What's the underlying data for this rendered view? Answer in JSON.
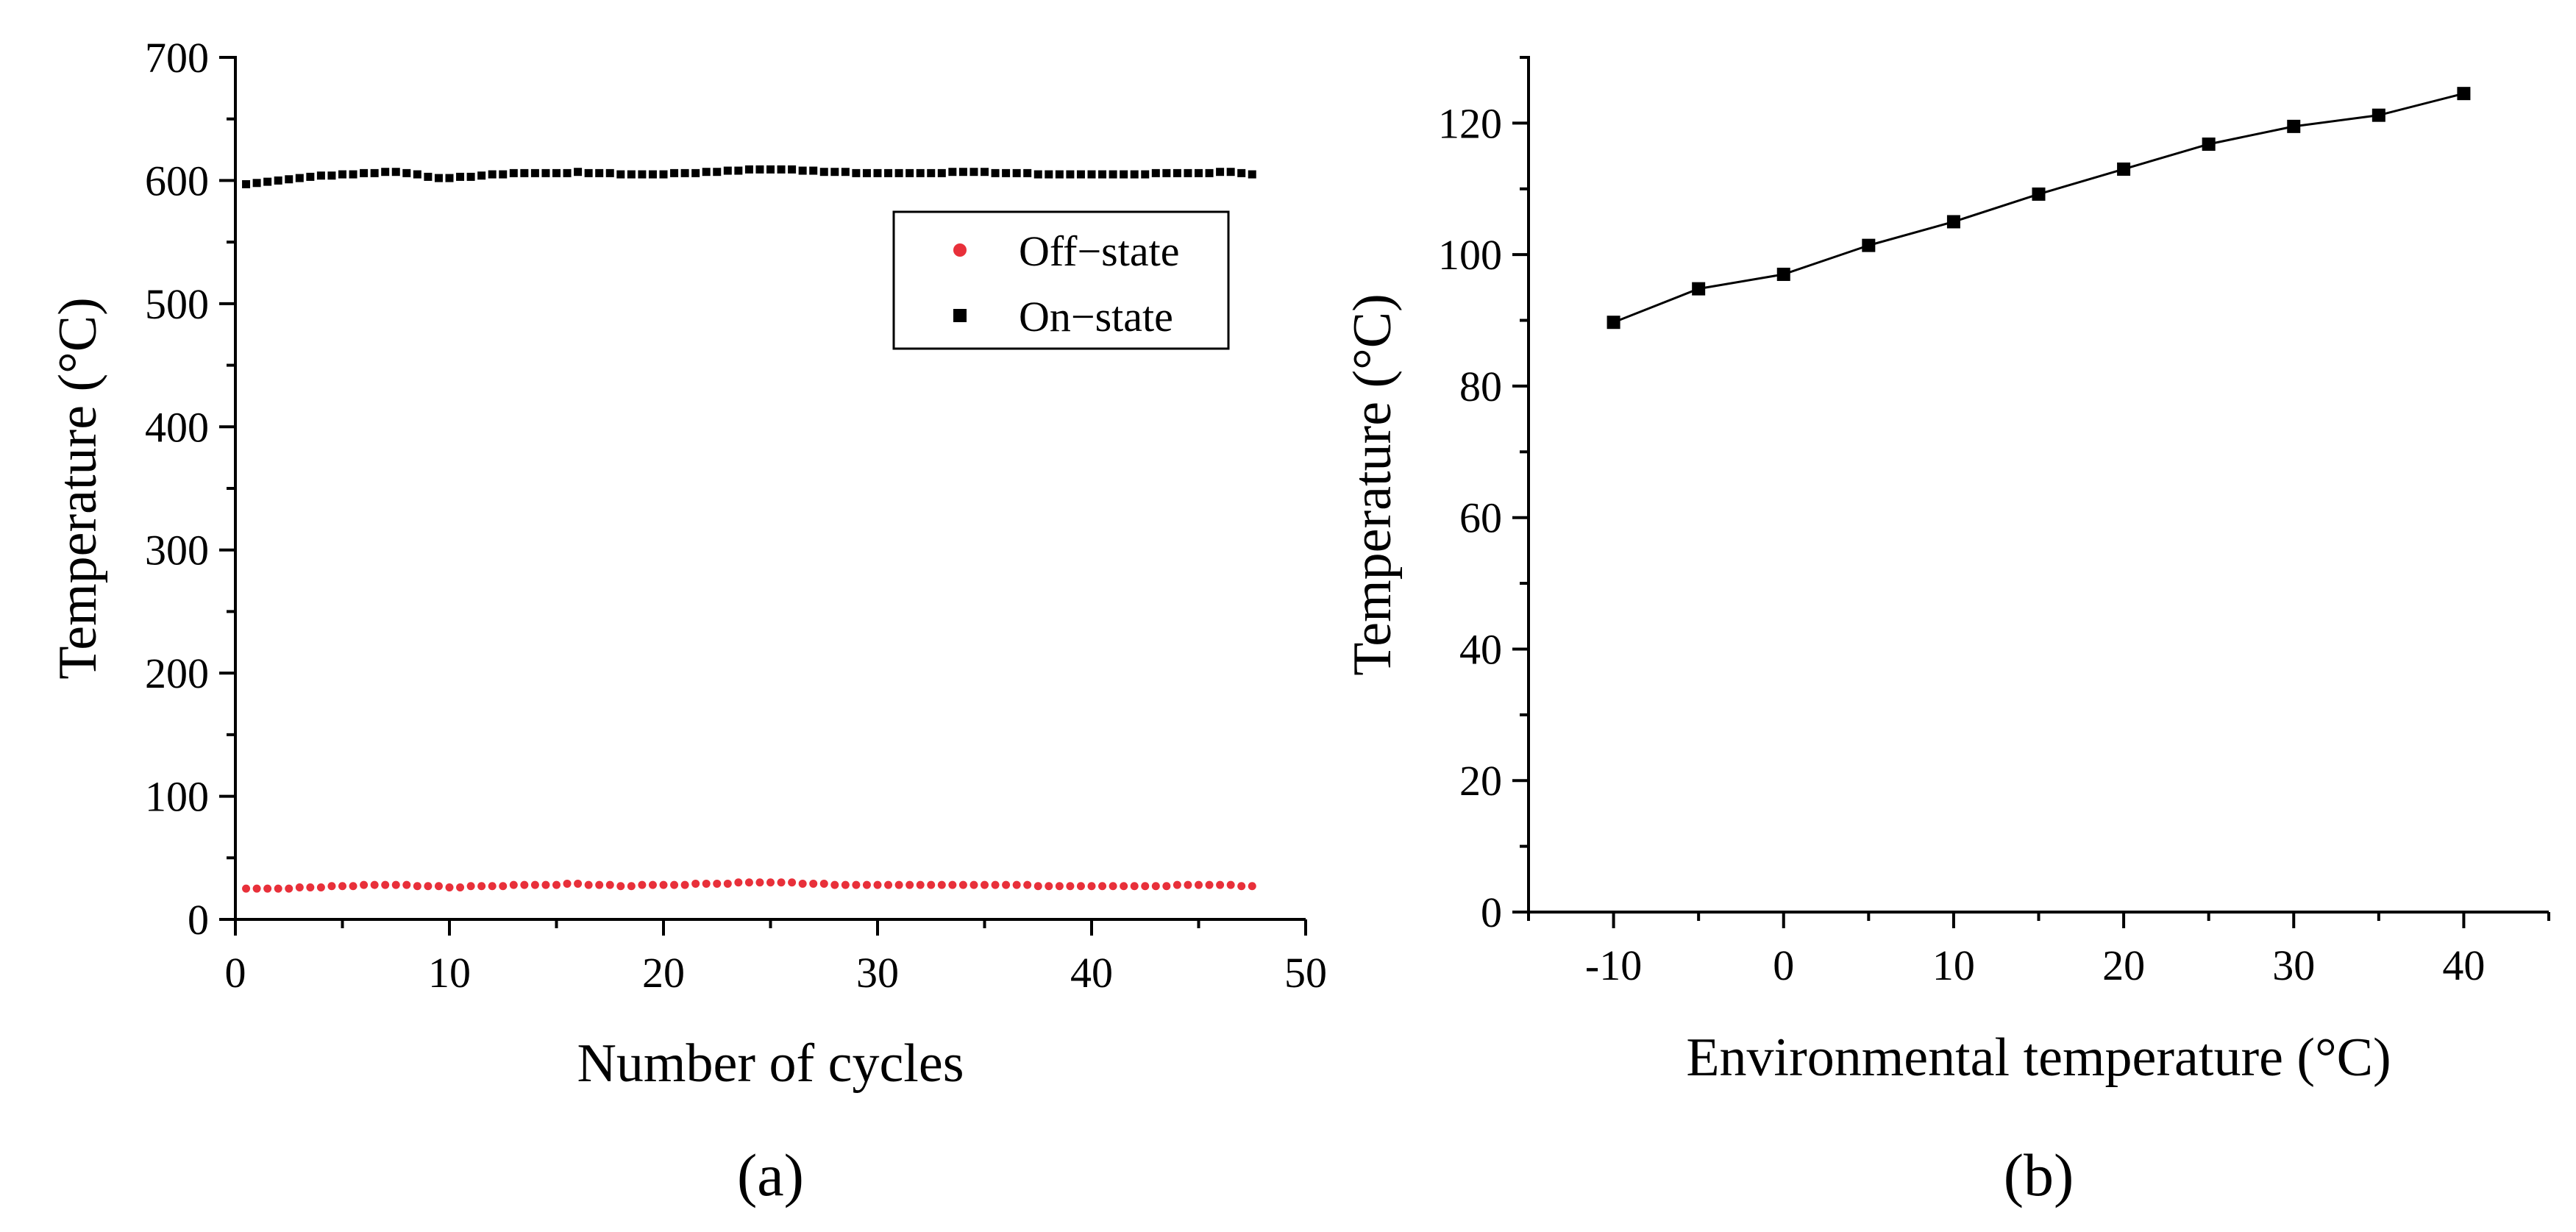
{
  "chart_data": [
    {
      "type": "scatter",
      "panel_label": "(a)",
      "title": "",
      "xlabel": "Number of cycles",
      "ylabel": "Temperature (°C)",
      "xlim": [
        0,
        50
      ],
      "ylim": [
        0,
        700
      ],
      "xticks": [
        0,
        10,
        20,
        30,
        40,
        50
      ],
      "yticks": [
        0,
        100,
        200,
        300,
        400,
        500,
        600,
        700
      ],
      "grid": false,
      "legend_position": "top-right",
      "series": [
        {
          "name": "Off−state",
          "marker": "circle",
          "color": "#e8303a",
          "x": [
            0.5,
            1,
            1.5,
            2,
            2.5,
            3,
            3.5,
            4,
            4.5,
            5,
            5.5,
            6,
            6.5,
            7,
            7.5,
            8,
            8.5,
            9,
            9.5,
            10,
            10.5,
            11,
            11.5,
            12,
            12.5,
            13,
            13.5,
            14,
            14.5,
            15,
            15.5,
            16,
            16.5,
            17,
            17.5,
            18,
            18.5,
            19,
            19.5,
            20,
            20.5,
            21,
            21.5,
            22,
            22.5,
            23,
            23.5,
            24,
            24.5,
            25,
            25.5,
            26,
            26.5,
            27,
            27.5,
            28,
            28.5,
            29,
            29.5,
            30,
            30.5,
            31,
            31.5,
            32,
            32.5,
            33,
            33.5,
            34,
            34.5,
            35,
            35.5,
            36,
            36.5,
            37,
            37.5,
            38,
            38.5,
            39,
            39.5,
            40,
            40.5,
            41,
            41.5,
            42,
            42.5,
            43,
            43.5,
            44,
            44.5,
            45,
            45.5,
            46,
            46.5,
            47,
            47.5
          ],
          "y": [
            25,
            25,
            25,
            25,
            25,
            26,
            26,
            26,
            27,
            27,
            27,
            28,
            28,
            28,
            28,
            28,
            27,
            27,
            27,
            26,
            26,
            27,
            27,
            27,
            27,
            28,
            28,
            28,
            28,
            28,
            29,
            29,
            28,
            28,
            28,
            27,
            27,
            28,
            28,
            28,
            28,
            28,
            29,
            29,
            29,
            29,
            30,
            30,
            30,
            30,
            30,
            30,
            29,
            29,
            29,
            28,
            28,
            28,
            28,
            28,
            28,
            28,
            28,
            28,
            28,
            28,
            28,
            28,
            28,
            28,
            28,
            28,
            28,
            28,
            27,
            27,
            27,
            27,
            27,
            27,
            27,
            27,
            27,
            27,
            27,
            27,
            27,
            28,
            28,
            28,
            28,
            28,
            28,
            27,
            27
          ]
        },
        {
          "name": "On−state",
          "marker": "square",
          "color": "#000000",
          "x": [
            0.5,
            1,
            1.5,
            2,
            2.5,
            3,
            3.5,
            4,
            4.5,
            5,
            5.5,
            6,
            6.5,
            7,
            7.5,
            8,
            8.5,
            9,
            9.5,
            10,
            10.5,
            11,
            11.5,
            12,
            12.5,
            13,
            13.5,
            14,
            14.5,
            15,
            15.5,
            16,
            16.5,
            17,
            17.5,
            18,
            18.5,
            19,
            19.5,
            20,
            20.5,
            21,
            21.5,
            22,
            22.5,
            23,
            23.5,
            24,
            24.5,
            25,
            25.5,
            26,
            26.5,
            27,
            27.5,
            28,
            28.5,
            29,
            29.5,
            30,
            30.5,
            31,
            31.5,
            32,
            32.5,
            33,
            33.5,
            34,
            34.5,
            35,
            35.5,
            36,
            36.5,
            37,
            37.5,
            38,
            38.5,
            39,
            39.5,
            40,
            40.5,
            41,
            41.5,
            42,
            42.5,
            43,
            43.5,
            44,
            44.5,
            45,
            45.5,
            46,
            46.5,
            47,
            47.5
          ],
          "y": [
            597,
            598,
            599,
            600,
            601,
            602,
            603,
            604,
            604,
            605,
            605,
            606,
            606,
            607,
            607,
            606,
            605,
            603,
            602,
            602,
            603,
            603,
            604,
            605,
            605,
            606,
            606,
            606,
            606,
            606,
            606,
            607,
            606,
            606,
            606,
            605,
            605,
            605,
            605,
            605,
            606,
            606,
            606,
            607,
            607,
            608,
            608,
            609,
            609,
            609,
            609,
            609,
            608,
            608,
            607,
            607,
            607,
            606,
            606,
            606,
            606,
            606,
            606,
            606,
            606,
            606,
            607,
            607,
            607,
            607,
            606,
            606,
            606,
            606,
            605,
            605,
            605,
            605,
            605,
            605,
            605,
            605,
            605,
            605,
            605,
            606,
            606,
            606,
            606,
            606,
            606,
            607,
            607,
            606,
            605
          ]
        }
      ]
    },
    {
      "type": "line",
      "panel_label": "(b)",
      "title": "",
      "xlabel": "Environmental temperature (°C)",
      "ylabel": "Temperature (°C)",
      "xlim": [
        -15,
        45
      ],
      "ylim": [
        0,
        130
      ],
      "xticks": [
        -10,
        0,
        10,
        20,
        30,
        40
      ],
      "xtick_labels": [
        "-10",
        "0",
        "10",
        "20",
        "30",
        "40"
      ],
      "yticks": [
        0,
        20,
        40,
        60,
        80,
        100,
        120
      ],
      "grid": false,
      "series": [
        {
          "name": "Temperature",
          "marker": "square",
          "color": "#000000",
          "x": [
            -10,
            -5,
            0,
            5,
            10,
            15,
            20,
            25,
            30,
            35,
            40
          ],
          "y": [
            89.7,
            94.8,
            97.0,
            101.4,
            105.0,
            109.2,
            113.0,
            116.8,
            119.5,
            121.2,
            124.5
          ]
        }
      ]
    }
  ]
}
